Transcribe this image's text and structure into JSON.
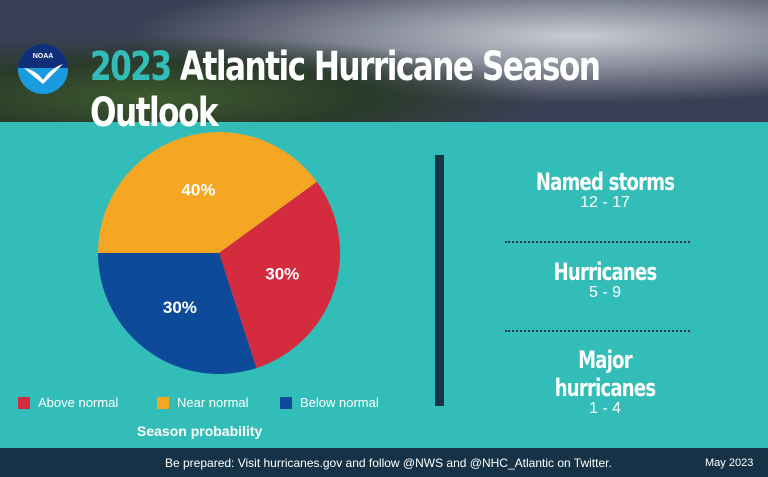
{
  "header": {
    "logo_text": "NOAA",
    "title_year": "2023",
    "title_rest": " Atlantic Hurricane Season Outlook"
  },
  "chart_data": {
    "type": "pie",
    "title": "Season probability",
    "slices": [
      {
        "name": "Near normal",
        "value": 40,
        "label": "40%",
        "color": "#f5a623"
      },
      {
        "name": "Above normal",
        "value": 30,
        "label": "30%",
        "color": "#d42b3f"
      },
      {
        "name": "Below normal",
        "value": 30,
        "label": "30%",
        "color": "#0d4a9a"
      }
    ],
    "legend_order": [
      1,
      0,
      2
    ],
    "legend_position": "bottom"
  },
  "stats": [
    {
      "label": "Named storms",
      "value": "12 - 17"
    },
    {
      "label": "Hurricanes",
      "value": "5 - 9"
    },
    {
      "label": "Major hurricanes",
      "value": "1 - 4"
    }
  ],
  "footer": {
    "message": "Be prepared: Visit hurricanes.gov and follow @NWS and @NHC_Atlantic on Twitter.",
    "date": "May 2023"
  }
}
